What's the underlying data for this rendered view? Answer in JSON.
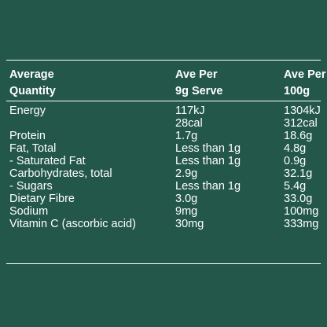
{
  "header": {
    "col1_line1": "Average",
    "col1_line2": "Quantity",
    "col2_line1": "Ave Per",
    "col2_line2": "9g Serve",
    "col3_line1": "Ave Per",
    "col3_line2": "100g"
  },
  "energy": {
    "label": "Energy",
    "serve_kj": "117kJ",
    "serve_cal": "28cal",
    "per100_kj": "1304kJ",
    "per100_cal": "312cal"
  },
  "rows": [
    {
      "label": "Protein",
      "serve": "1.7g",
      "per100": "18.6g"
    },
    {
      "label": "Fat, Total",
      "serve": "Less than 1g",
      "per100": "4.8g"
    },
    {
      "label": "- Saturated Fat",
      "serve": "Less than 1g",
      "per100": "0.9g"
    },
    {
      "label": "Carbohydrates, total",
      "serve": "2.9g",
      "per100": "32.1g"
    },
    {
      "label": "- Sugars",
      "serve": "Less than 1g",
      "per100": "5.4g"
    },
    {
      "label": "Dietary Fibre",
      "serve": "3.0g",
      "per100": "33.0g"
    },
    {
      "label": "Sodium",
      "serve": "9mg",
      "per100": "100mg"
    },
    {
      "label": "Vitamin C (ascorbic acid)",
      "serve": "30mg",
      "per100": "333mg"
    }
  ]
}
